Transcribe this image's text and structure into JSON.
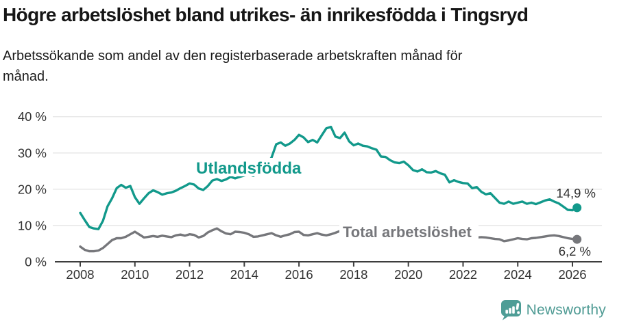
{
  "header": {
    "title": "Högre arbetslöshet bland utrikes- än inrikesfödda i Tingsryd",
    "subtitle_line1": "Arbetssökande som andel av den registerbaserade arbetskraften månad för",
    "subtitle_line2": "månad."
  },
  "footer": {
    "brand": "Newsworthy"
  },
  "colors": {
    "teal": "#12998b",
    "gray": "#76777b",
    "gridline": "#e4e4e4",
    "axis": "#3d3d3d",
    "axis_text": "#333333",
    "value_label_text": "#2d2d2d",
    "logo_teal": "#4e9d96"
  },
  "chart_data": {
    "type": "line",
    "title": "Högre arbetslöshet bland utrikes- än inrikesfödda i Tingsryd",
    "subtitle": "Arbetssökande som andel av den registerbaserade arbetskraften månad för månad.",
    "x_axis": {
      "ticks": [
        2008,
        2010,
        2012,
        2014,
        2016,
        2018,
        2020,
        2022,
        2024,
        2026
      ],
      "range": [
        2007,
        2027
      ],
      "unit": "year"
    },
    "y_axis": {
      "ticks": [
        {
          "value": 0,
          "label": "0 %"
        },
        {
          "value": 10,
          "label": "10 %"
        },
        {
          "value": 20,
          "label": "20 %"
        },
        {
          "value": 30,
          "label": "30 %"
        },
        {
          "value": 40,
          "label": "40 %"
        }
      ],
      "range": [
        0,
        40
      ],
      "grid": true
    },
    "legend_position": "inline-labels",
    "series": [
      {
        "name": "Utlandsfödda",
        "color": "#12998b",
        "start_year": 2008,
        "points_per_year": 6,
        "end_label": "14,9 %",
        "last_value": 14.9,
        "values": [
          13.5,
          11.5,
          9.6,
          9.2,
          9.0,
          11.3,
          15.3,
          17.5,
          20.3,
          21.2,
          20.4,
          20.9,
          17.8,
          16.0,
          17.5,
          18.9,
          19.7,
          19.2,
          18.5,
          18.9,
          19.1,
          19.6,
          20.3,
          20.9,
          21.6,
          21.3,
          20.2,
          19.8,
          20.9,
          22.4,
          22.8,
          22.3,
          22.7,
          23.4,
          23.0,
          23.4,
          23.8,
          24.1,
          23.7,
          24.3,
          25.2,
          27.0,
          28.8,
          32.4,
          32.9,
          32.0,
          32.6,
          33.6,
          35.0,
          34.3,
          33.0,
          33.6,
          32.9,
          34.9,
          36.8,
          37.2,
          34.5,
          34.1,
          35.6,
          33.2,
          32.1,
          32.6,
          32.0,
          31.8,
          31.3,
          30.9,
          29.0,
          28.9,
          28.0,
          27.4,
          27.2,
          27.6,
          26.6,
          25.3,
          24.9,
          25.5,
          24.7,
          24.6,
          25.0,
          24.4,
          24.0,
          21.9,
          22.5,
          22.0,
          21.7,
          21.6,
          20.3,
          20.6,
          19.3,
          18.6,
          18.9,
          17.6,
          16.3,
          16.0,
          16.6,
          16.0,
          16.3,
          16.6,
          16.0,
          16.3,
          15.9,
          16.4,
          16.9,
          17.2,
          16.6,
          16.1,
          15.2,
          14.3,
          14.2,
          14.9
        ]
      },
      {
        "name": "Total arbetslöshet",
        "color": "#76777b",
        "start_year": 2008,
        "points_per_year": 6,
        "end_label": "6,2 %",
        "last_value": 6.2,
        "values": [
          4.2,
          3.3,
          2.9,
          2.9,
          3.1,
          3.8,
          4.9,
          6.0,
          6.5,
          6.5,
          6.9,
          7.6,
          8.3,
          7.5,
          6.7,
          6.9,
          7.1,
          6.9,
          7.2,
          7.0,
          6.8,
          7.3,
          7.5,
          7.2,
          7.6,
          7.4,
          6.7,
          7.1,
          8.1,
          8.7,
          9.2,
          8.4,
          7.8,
          7.6,
          8.3,
          8.2,
          8.0,
          7.6,
          6.9,
          7.0,
          7.3,
          7.6,
          7.9,
          7.3,
          6.9,
          7.3,
          7.6,
          8.2,
          8.3,
          7.4,
          7.3,
          7.6,
          7.9,
          7.5,
          7.3,
          7.6,
          8.0,
          8.5,
          8.2,
          7.8,
          7.6,
          7.7,
          7.4,
          7.2,
          7.0,
          6.9,
          6.8,
          6.7,
          6.6,
          6.5,
          6.6,
          6.7,
          6.9,
          7.3,
          7.8,
          8.0,
          7.8,
          7.6,
          7.4,
          7.2,
          7.0,
          6.8,
          6.7,
          6.6,
          6.6,
          6.6,
          6.6,
          6.7,
          6.8,
          6.7,
          6.5,
          6.3,
          6.2,
          5.7,
          5.9,
          6.2,
          6.5,
          6.3,
          6.2,
          6.5,
          6.6,
          6.8,
          7.0,
          7.2,
          7.3,
          7.1,
          6.8,
          6.5,
          6.3,
          6.2
        ]
      }
    ]
  }
}
